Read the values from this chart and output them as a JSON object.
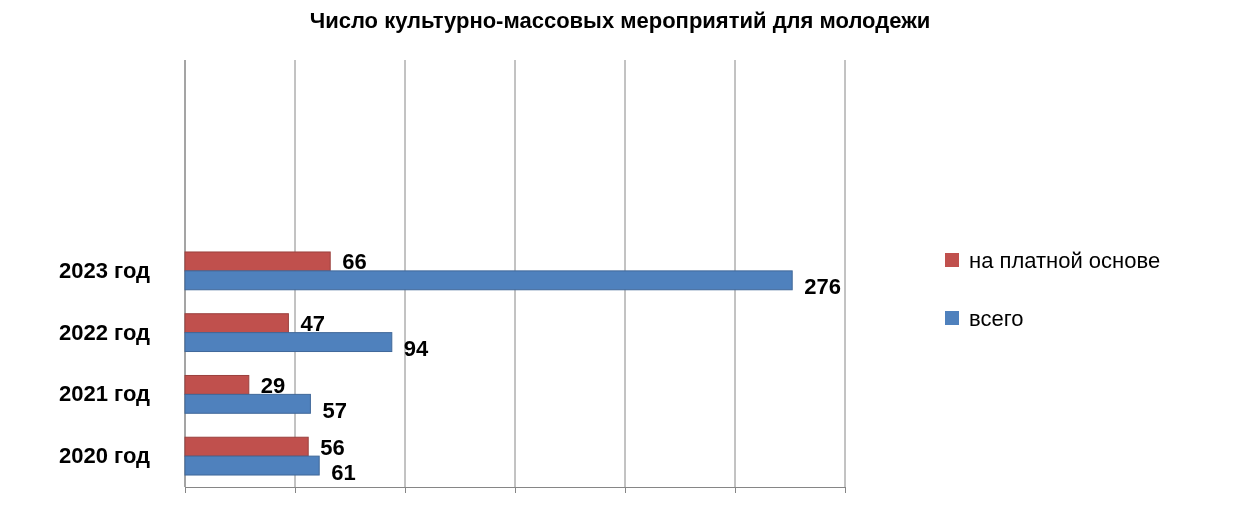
{
  "chart_data": {
    "type": "bar",
    "orientation": "horizontal",
    "title": "Число культурно-массовых мероприятий  для молодежи",
    "categories": [
      "2023 год",
      "2022 год",
      "2021 год",
      "2020 год"
    ],
    "series": [
      {
        "name": "на платной основе",
        "color": "#c0504d",
        "values": [
          66,
          47,
          29,
          56
        ]
      },
      {
        "name": "всего",
        "color": "#4f81bd",
        "values": [
          276,
          94,
          57,
          61
        ]
      }
    ],
    "xlim": [
      0,
      300
    ],
    "xticks": [
      {
        "value": 0,
        "label": null
      },
      {
        "value": 50,
        "label": null
      },
      {
        "value": 100,
        "label": null
      },
      {
        "value": 150,
        "label": null
      },
      {
        "value": 200,
        "label": null
      },
      {
        "value": 250,
        "label": null
      },
      {
        "value": 300,
        "label": null
      }
    ],
    "tick_labels": "y",
    "grid": "x",
    "legend": "right",
    "data_labels": true
  }
}
